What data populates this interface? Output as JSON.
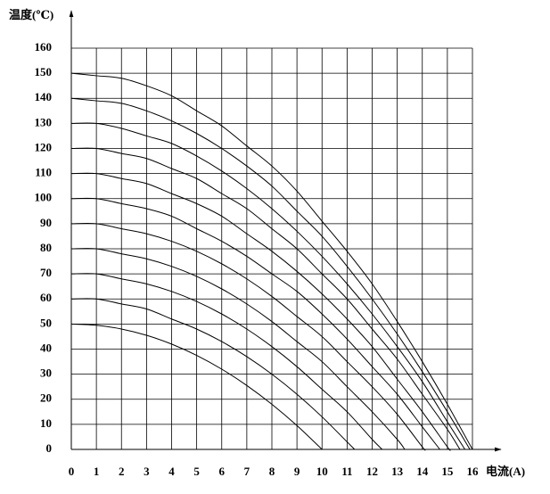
{
  "chart_data": {
    "type": "line",
    "ylabel": "温度(℃)",
    "xlabel": "电流(A)",
    "xlim": [
      0,
      16
    ],
    "ylim": [
      0,
      160
    ],
    "xticks": [
      0,
      1,
      2,
      3,
      4,
      5,
      6,
      7,
      8,
      9,
      10,
      11,
      12,
      13,
      14,
      15,
      16
    ],
    "yticks": [
      0,
      10,
      20,
      30,
      40,
      50,
      60,
      70,
      80,
      90,
      100,
      110,
      120,
      130,
      140,
      150,
      160
    ],
    "grid": true,
    "series": [
      {
        "color": "#000",
        "x": [
          0,
          1,
          2,
          3,
          4,
          5,
          6,
          7,
          8,
          9,
          10
        ],
        "values": [
          50,
          49.5,
          48,
          45.5,
          42,
          37.5,
          32,
          25.5,
          18,
          9.5,
          0
        ]
      },
      {
        "color": "#000",
        "x": [
          0,
          1,
          2,
          3,
          4,
          5,
          6,
          7,
          8,
          9,
          10,
          11,
          11.3
        ],
        "values": [
          60,
          60,
          58,
          56,
          52,
          48,
          43,
          37,
          30,
          22,
          13,
          3,
          0
        ]
      },
      {
        "color": "#000",
        "x": [
          0,
          1,
          2,
          3,
          4,
          5,
          6,
          7,
          8,
          9,
          10,
          11,
          12,
          12.4
        ],
        "values": [
          70,
          70,
          68,
          66,
          63,
          59,
          54,
          48,
          41,
          33,
          24,
          15,
          4,
          0
        ]
      },
      {
        "color": "#000",
        "x": [
          0,
          1,
          2,
          3,
          4,
          5,
          6,
          7,
          8,
          9,
          10,
          11,
          12,
          13,
          13.3
        ],
        "values": [
          80,
          80,
          78,
          76,
          73,
          69,
          64,
          58,
          51,
          43,
          35,
          25,
          15,
          4,
          0
        ]
      },
      {
        "color": "#000",
        "x": [
          0,
          1,
          2,
          3,
          4,
          5,
          6,
          7,
          8,
          9,
          10,
          11,
          12,
          13,
          14,
          14.1
        ],
        "values": [
          90,
          90,
          88,
          86,
          83,
          79,
          74,
          68,
          61,
          53,
          45,
          35,
          25,
          14,
          1,
          0
        ]
      },
      {
        "color": "#000",
        "x": [
          0,
          1,
          2,
          3,
          4,
          5,
          6,
          7,
          8,
          9,
          10,
          11,
          12,
          13,
          14,
          14.7
        ],
        "values": [
          100,
          100,
          98,
          96,
          93,
          88,
          83,
          77,
          70,
          63,
          54,
          44,
          33,
          22,
          9,
          0
        ]
      },
      {
        "color": "#000",
        "x": [
          0,
          1,
          2,
          3,
          4,
          5,
          6,
          7,
          8,
          9,
          10,
          11,
          12,
          13,
          14,
          15,
          15.1
        ],
        "values": [
          110,
          110,
          108,
          106,
          102,
          98,
          93,
          86,
          79,
          71,
          62,
          52,
          41,
          28,
          15,
          1,
          0
        ]
      },
      {
        "color": "#000",
        "x": [
          0,
          1,
          2,
          3,
          4,
          5,
          6,
          7,
          8,
          9,
          10,
          11,
          12,
          13,
          14,
          15,
          15.5
        ],
        "values": [
          120,
          120,
          118,
          116,
          112,
          108,
          102,
          96,
          88,
          80,
          70,
          60,
          48,
          36,
          22,
          8,
          0
        ]
      },
      {
        "color": "#000",
        "x": [
          0,
          1,
          2,
          3,
          4,
          5,
          6,
          7,
          8,
          9,
          10,
          11,
          12,
          13,
          14,
          15,
          15.7
        ],
        "values": [
          130,
          130,
          128,
          125,
          122,
          117,
          111,
          104,
          96,
          87,
          77,
          66,
          54,
          41,
          27,
          11,
          0
        ]
      },
      {
        "color": "#000",
        "x": [
          0,
          1,
          2,
          3,
          4,
          5,
          6,
          7,
          8,
          9,
          10,
          11,
          12,
          13,
          14,
          15,
          15.9
        ],
        "values": [
          140,
          139,
          138,
          135,
          131,
          126,
          120,
          113,
          105,
          95,
          85,
          73,
          60,
          46,
          31,
          15,
          0
        ]
      },
      {
        "color": "#000",
        "x": [
          0,
          1,
          2,
          3,
          4,
          5,
          6,
          7,
          8,
          9,
          10,
          11,
          12,
          13,
          14,
          15,
          16
        ],
        "values": [
          150,
          149,
          148,
          145,
          141,
          135,
          129,
          121,
          113,
          103,
          91,
          79,
          66,
          51,
          35,
          18,
          0
        ]
      }
    ]
  }
}
